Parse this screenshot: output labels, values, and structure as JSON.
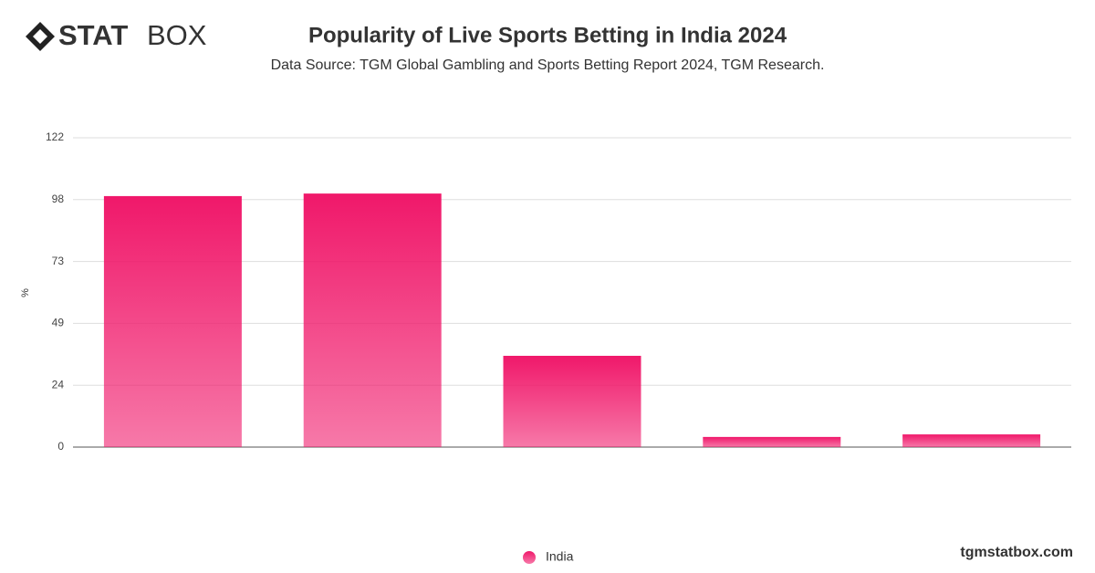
{
  "brand": {
    "bold": "STAT",
    "light": "BOX"
  },
  "footer": "tgmstatbox.com",
  "chart_data": {
    "type": "bar",
    "title": "Popularity of Live Sports Betting in India 2024",
    "subtitle": "Data Source: TGM Global Gambling and Sports Betting Report 2024, TGM Research.",
    "y_label": "%",
    "categories": [
      null,
      null,
      null,
      null,
      null
    ],
    "series": [
      {
        "name": "India",
        "color": "#f0186a",
        "values": [
          99,
          100,
          36,
          4,
          5
        ]
      }
    ],
    "ylim": [
      0,
      122
    ],
    "yticks": [
      0,
      {
        "value": 24.4,
        "label": "24"
      },
      {
        "value": 48.8,
        "label": "49"
      },
      {
        "value": 73.2,
        "label": "73"
      },
      {
        "value": 97.6,
        "label": "98"
      },
      122
    ],
    "grid": true,
    "legend": "bottom"
  }
}
